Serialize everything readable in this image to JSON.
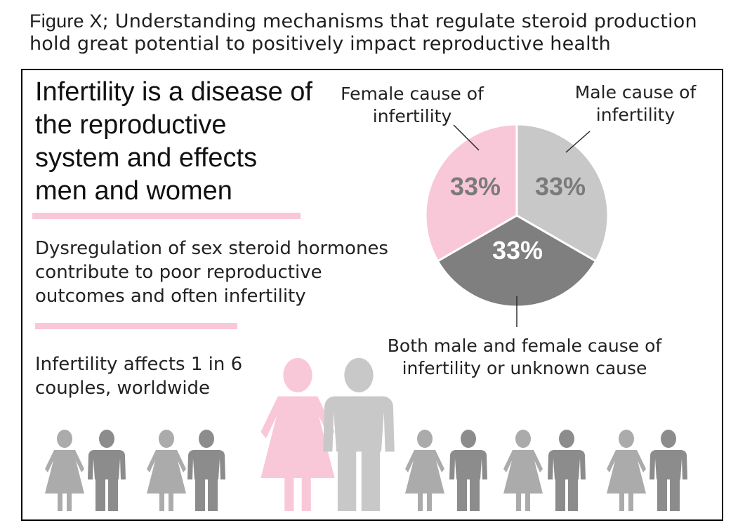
{
  "caption": {
    "figure_label": "Figure X",
    "text": "; Understanding mechanisms that regulate steroid production hold great potential to positively impact reproductive health"
  },
  "panel": {
    "heading": "Infertility is a disease of the reproductive system and effects men and women",
    "text1": "Dysregulation of sex steroid hormones contribute to poor reproductive outcomes and often infertility",
    "text2": "Infertility affects 1 in 6 couples, worldwide"
  },
  "colors": {
    "female": "#f9c8d8",
    "male": "#c8c8c8",
    "both": "#7f7f7f",
    "figure_dark": "#8c8c8c",
    "figure_light": "#ababab",
    "label_text_on_light": "#7a7a7a",
    "label_text_on_dark": "#ffffff"
  },
  "chart_data": {
    "type": "pie",
    "title": "",
    "slices": [
      {
        "label": "Female cause of infertility",
        "value": 33,
        "display": "33%",
        "color": "#f9c8d8"
      },
      {
        "label": "Male cause of infertility",
        "value": 33,
        "display": "33%",
        "color": "#c8c8c8"
      },
      {
        "label": "Both male and female cause of infertility or unknown cause",
        "value": 33,
        "display": "33%",
        "color": "#7f7f7f"
      }
    ]
  },
  "chart_labels": {
    "female": "Female cause of infertility",
    "male": "Male cause of infertility",
    "both": "Both male and female cause of infertility or unknown cause"
  },
  "icons": {
    "small_people": [
      "woman-figure-icon",
      "man-figure-icon"
    ],
    "large_woman": "woman-figure-icon",
    "large_man": "man-figure-icon"
  }
}
